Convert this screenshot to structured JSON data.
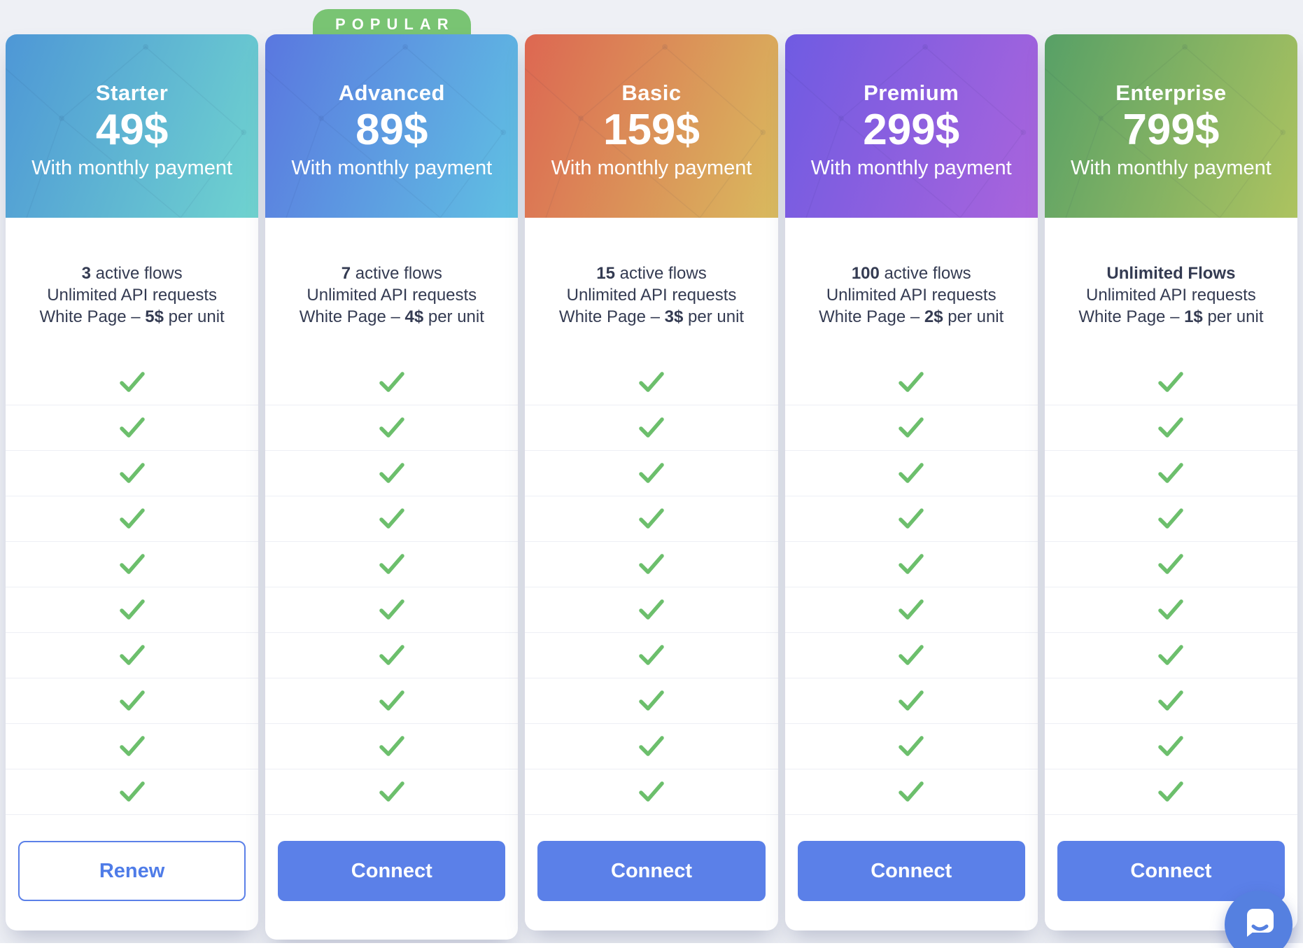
{
  "badge": {
    "label": "POPULAR",
    "color": "#79c473"
  },
  "colors": {
    "page_background": "#eef0f5",
    "check_green": "#6cbf6c",
    "button_blue": "#5b80e8",
    "text_dark": "#343b52"
  },
  "cards": [
    {
      "title": "Starter",
      "price": "49$",
      "billing_note": "With monthly payment",
      "gradient_css": "linear-gradient(110deg, #4e97d6, #6fd3cf)",
      "features": {
        "f1_bold": "3",
        "f1_rest": " active flows",
        "f2": "Unlimited API requests",
        "f3_pre": "White Page – ",
        "f3_bold": "5$",
        "f3_rest": " per unit"
      },
      "check_rows": 10,
      "button": {
        "label": "Renew",
        "variant": "outline"
      }
    },
    {
      "title": "Advanced",
      "price": "89$",
      "billing_note": "With monthly payment",
      "popular": true,
      "gradient_css": "linear-gradient(110deg, #5a77e0, #60c1e2)",
      "features": {
        "f1_bold": "7",
        "f1_rest": " active flows",
        "f2": "Unlimited API requests",
        "f3_pre": "White Page – ",
        "f3_bold": "4$",
        "f3_rest": " per unit"
      },
      "check_rows": 10,
      "button": {
        "label": "Connect",
        "variant": "solid"
      }
    },
    {
      "title": "Basic",
      "price": "159$",
      "billing_note": "With monthly payment",
      "gradient_css": "linear-gradient(110deg, #dd6752, #d9ba5e)",
      "features": {
        "f1_bold": "15",
        "f1_rest": " active flows",
        "f2": "Unlimited API requests",
        "f3_pre": "White Page – ",
        "f3_bold": "3$",
        "f3_rest": " per unit"
      },
      "check_rows": 10,
      "button": {
        "label": "Connect",
        "variant": "solid"
      }
    },
    {
      "title": "Premium",
      "price": "299$",
      "billing_note": "With monthly payment",
      "gradient_css": "linear-gradient(110deg, #6f5be2, #aa64dc)",
      "features": {
        "f1_bold": "100",
        "f1_rest": " active flows",
        "f2": "Unlimited API requests",
        "f3_pre": "White Page – ",
        "f3_bold": "2$",
        "f3_rest": " per unit"
      },
      "check_rows": 10,
      "button": {
        "label": "Connect",
        "variant": "solid"
      }
    },
    {
      "title": "Enterprise",
      "price": "799$",
      "billing_note": "With monthly payment",
      "gradient_css": "linear-gradient(110deg, #57a066, #adc360)",
      "features": {
        "f1_bold": "Unlimited Flows",
        "f1_rest": "",
        "f2": "Unlimited API requests",
        "f3_pre": "White Page – ",
        "f3_bold": "1$",
        "f3_rest": " per unit"
      },
      "check_rows": 10,
      "button": {
        "label": "Connect",
        "variant": "solid"
      }
    }
  ]
}
